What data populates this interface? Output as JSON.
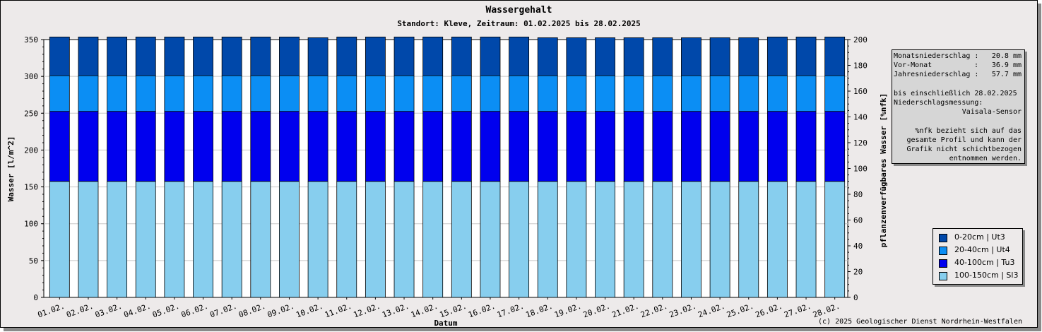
{
  "title": "Wassergehalt",
  "subtitle": "Standort: Kleve, Zeitraum: 01.02.2025 bis 28.02.2025",
  "chart_data": {
    "type": "bar",
    "stacked": true,
    "xlabel": "Datum",
    "ylabel": "Wasser [l/m^2]",
    "y2label": "pflanzenverfügbares Wasser [%nfk]",
    "ylim": [
      0,
      350
    ],
    "y2lim": [
      0,
      200
    ],
    "yticks": [
      0,
      50,
      100,
      150,
      200,
      250,
      300,
      350
    ],
    "y2ticks": [
      0,
      20,
      40,
      60,
      80,
      100,
      120,
      140,
      160,
      180,
      200
    ],
    "grid": true,
    "categories": [
      "01.02.",
      "02.02.",
      "03.02.",
      "04.02.",
      "05.02.",
      "06.02.",
      "07.02.",
      "08.02.",
      "09.02.",
      "10.02.",
      "11.02.",
      "12.02.",
      "13.02.",
      "14.02.",
      "15.02.",
      "16.02.",
      "17.02.",
      "18.02.",
      "19.02.",
      "20.02.",
      "21.02.",
      "22.02.",
      "23.02.",
      "24.02.",
      "25.02.",
      "26.02.",
      "27.02.",
      "28.02."
    ],
    "series": [
      {
        "name": "100-150cm | Sl3",
        "color": "#87ceee",
        "values": [
          157.5,
          157.5,
          157.5,
          157.5,
          157.5,
          157.5,
          157.5,
          157.5,
          157.5,
          157.5,
          157.5,
          157.5,
          157.5,
          157.5,
          157.5,
          157.5,
          157.5,
          157.5,
          157.5,
          157.5,
          157.5,
          157.5,
          157.5,
          157.5,
          157.5,
          157.5,
          157.5,
          157.5
        ]
      },
      {
        "name": "40-100cm | Tu3",
        "color": "#0000ee",
        "values": [
          95,
          95,
          95,
          95,
          95,
          95,
          95,
          95,
          95,
          95,
          95,
          95,
          95,
          95,
          95,
          95,
          95,
          95,
          95,
          95,
          95,
          95,
          95,
          95,
          95,
          95,
          95,
          95
        ]
      },
      {
        "name": "20-40cm | Ut4",
        "color": "#0b8ef4",
        "values": [
          48.5,
          48.5,
          48.5,
          48.5,
          48.5,
          48.5,
          48.5,
          48.5,
          48.5,
          48.5,
          48.5,
          48.5,
          48.5,
          48.5,
          48.5,
          48.5,
          48.5,
          48.5,
          48.5,
          48.5,
          48.5,
          48.5,
          48.5,
          48.5,
          48.5,
          48.5,
          48.5,
          48.5
        ]
      },
      {
        "name": "0-20cm | Ut3",
        "color": "#0048aa",
        "values": [
          52.5,
          52.5,
          52.5,
          52.5,
          52.5,
          52.5,
          52.5,
          52.5,
          52.5,
          51.5,
          52.5,
          52.5,
          52.5,
          52.5,
          52.5,
          52.5,
          52.5,
          51.5,
          51.5,
          51.5,
          51.5,
          51.5,
          51.5,
          51.5,
          51.5,
          52.5,
          52.5,
          52.5
        ]
      }
    ],
    "legend_position": "bottom-right"
  },
  "info": {
    "monthly_label": "Monatsniederschlag :",
    "monthly_value": "20.8 mm",
    "prev_label": "Vor-Monat",
    "prev_colon": ":",
    "prev_value": "36.9 mm",
    "yearly_label": "Jahresniederschlag :",
    "yearly_value": "57.7 mm",
    "upto": "bis einschließlich 28.02.2025",
    "measurement_label": "Niederschlagsmessung:",
    "sensor": "Vaisala-Sensor",
    "note_1": "%nfk bezieht sich auf das",
    "note_2": "gesamte Profil und kann der",
    "note_3": "Grafik nicht schichtbezogen",
    "note_4": "entnommen werden."
  },
  "copyright": "(c) 2025 Geologischer Dienst Nordrhein-Westfalen"
}
